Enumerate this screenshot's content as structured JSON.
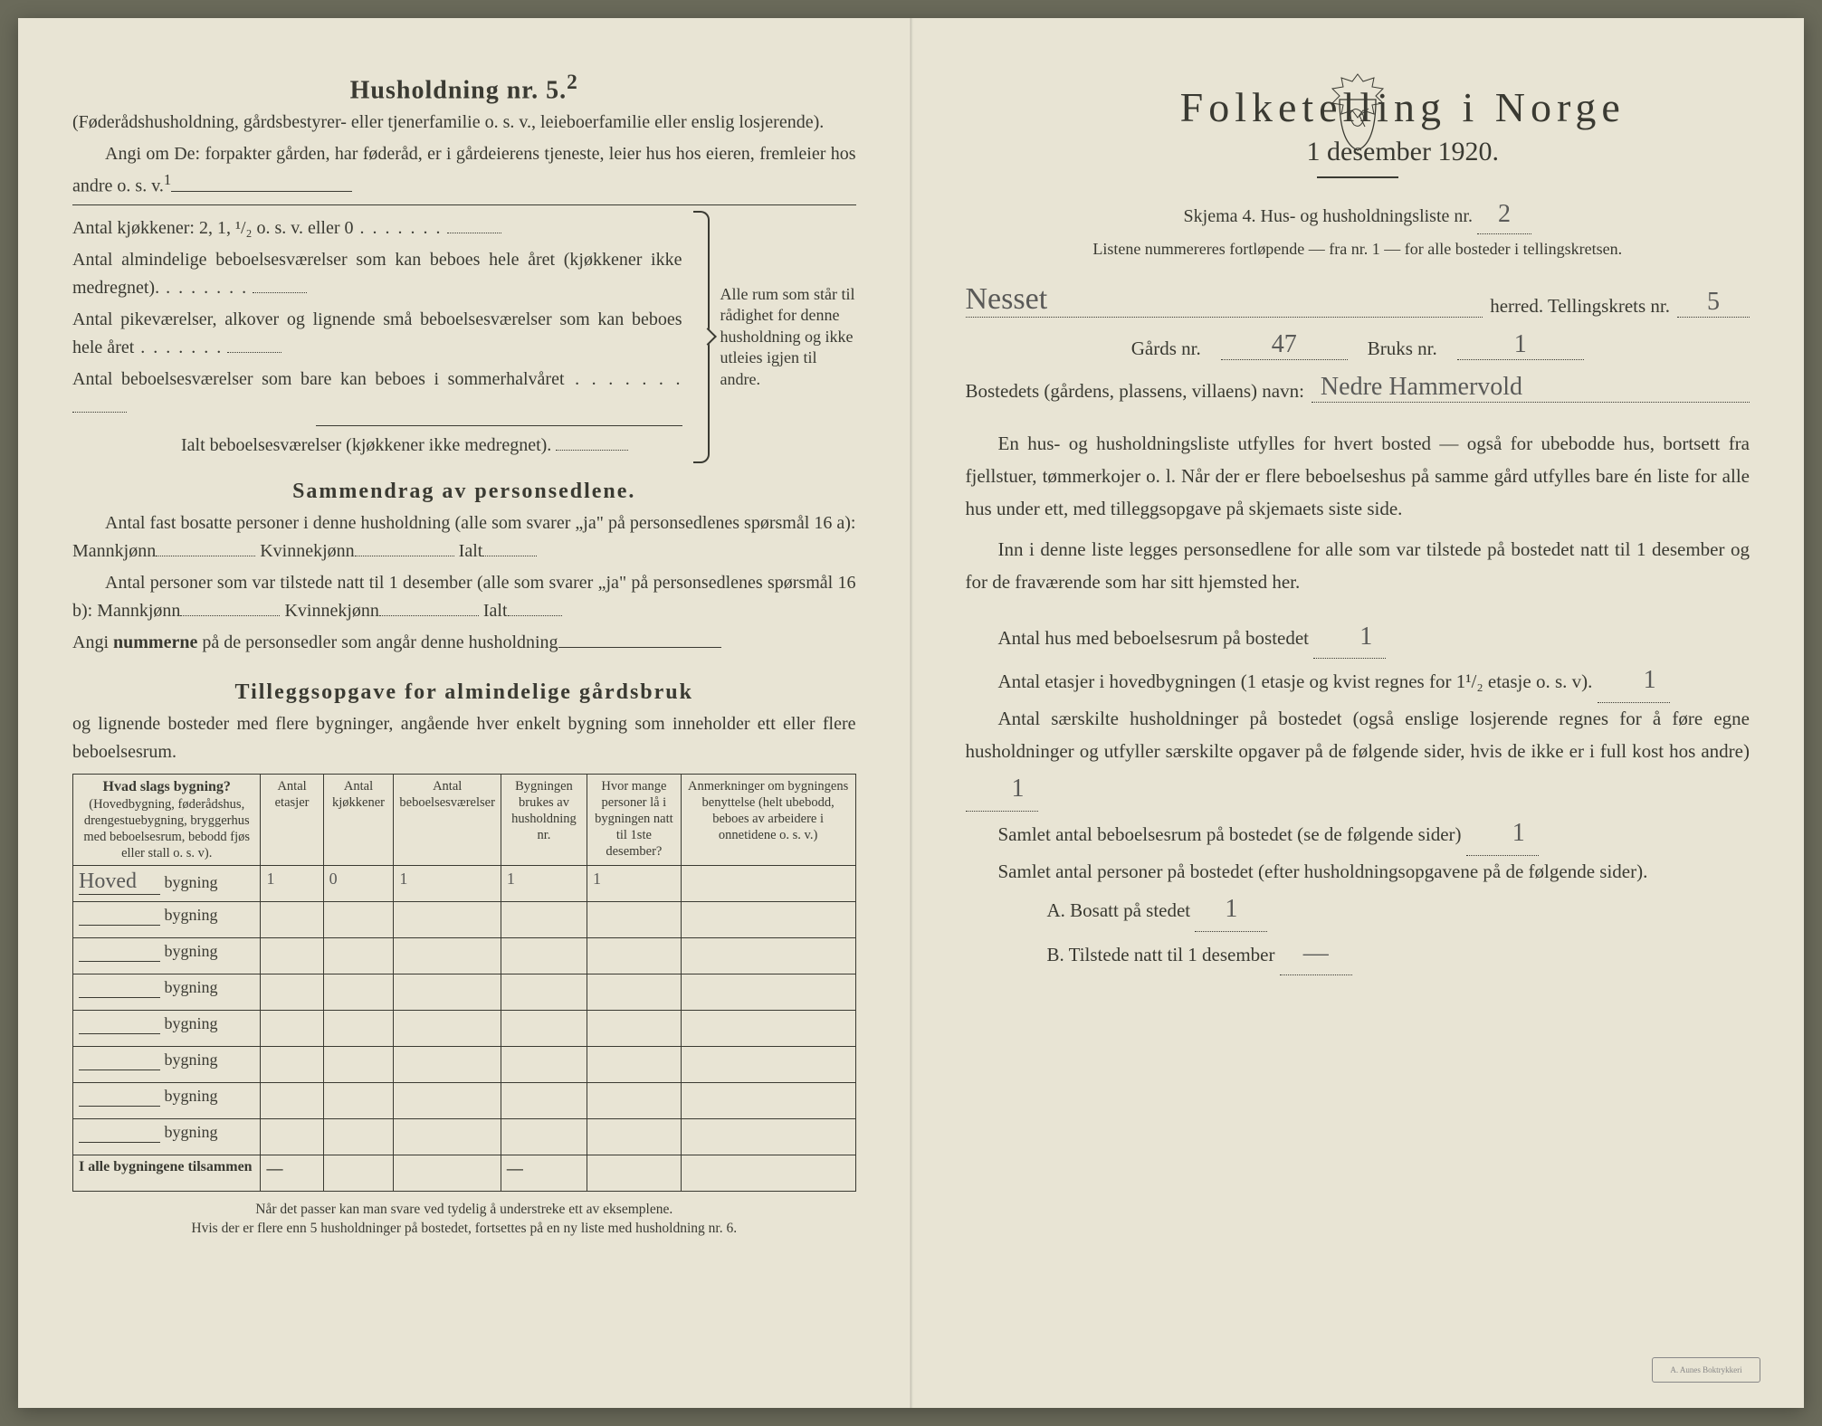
{
  "left": {
    "h5_title": "Husholdning nr. 5.",
    "h5_sup": "2",
    "h5_p1": "(Føderådshusholdning, gårdsbestyrer- eller tjenerfamilie o. s. v., leieboerfamilie eller enslig losjerende).",
    "h5_p2a": "Angi om De:  forpakter gården, har føderåd, er i gårdeierens tjeneste, leier hus hos eieren, fremleier hos andre o. s. v.",
    "h5_sup1": "1",
    "kjokken_line": "Antal kjøkkener: 2, 1, ¹/₂ o. s. v. eller 0",
    "rooms": [
      "Antal almindelige beboelsesværelser som kan beboes hele året (kjøkkener ikke medregnet).",
      "Antal pikeværelser, alkover og lignende små beboelsesværelser som kan beboes hele året",
      "Antal beboelsesværelser som bare kan beboes i sommerhalvåret"
    ],
    "rooms_total": "Ialt beboelsesværelser  (kjøkkener ikke medregnet).",
    "brace_text": "Alle rum som står til rådighet for denne husholdning og ikke utleies igjen til andre.",
    "sammen_title": "Sammendrag av personsedlene.",
    "sammen_p1": "Antal fast bosatte personer i denne husholdning (alle som svarer „ja\" på personsedlenes spørsmål 16 a): Mannkjønn",
    "kvinne": "Kvinnekjønn",
    "ialt": "Ialt",
    "sammen_p2": "Antal personer som var tilstede natt til 1 desember (alle som svarer „ja\" på personsedlenes spørsmål 16 b): Mannkjønn",
    "sammen_p3_a": "Angi ",
    "sammen_p3_b": "nummerne",
    "sammen_p3_c": " på de personsedler som angår denne husholdning",
    "tillegg_title": "Tilleggsopgave for almindelige gårdsbruk",
    "tillegg_sub": "og lignende bosteder med flere bygninger, angående hver enkelt bygning som inneholder ett eller flere beboelsesrum.",
    "thead": {
      "c1a": "Hvad slags bygning?",
      "c1b": "(Hovedbygning, føderådshus, drengestuebygning, bryggerhus med beboelsesrum, bebodd fjøs eller stall o. s. v).",
      "c2": "Antal etasjer",
      "c3": "Antal kjøkkener",
      "c4": "Antal beboelsesværelser",
      "c5": "Bygningen brukes av husholdning nr.",
      "c6": "Hvor mange personer lå i bygningen natt til 1ste desember?",
      "c7": "Anmerkninger om bygningens benyttelse (helt ubebodd, beboes av arbeidere i onnetidene o. s. v.)"
    },
    "bygning_word": "bygning",
    "row1_name": "Hoved",
    "row1": {
      "etasjer": "1",
      "kjokken": "0",
      "bebo": "1",
      "hush": "1",
      "pers": "1",
      "anm": ""
    },
    "rows_blank": 7,
    "total_label": "I alle bygningene tilsammen",
    "dash": "—",
    "foot1": "Når det passer kan man svare ved tydelig å understreke ett av eksemplene.",
    "foot2": "Hvis der er flere enn 5 husholdninger på bostedet, fortsettes på en ny liste med husholdning nr. 6."
  },
  "right": {
    "title": "Folketelling  i  Norge",
    "subtitle": "1 desember 1920.",
    "skjema_a": "Skjema 4.  Hus- og husholdningsliste nr.",
    "skjema_val": "2",
    "listene": "Listene nummereres fortløpende — fra nr. 1 — for alle bosteder i tellingskretsen.",
    "herred_val": "Nesset",
    "herred_lbl": "herred.   Tellingskrets nr.",
    "krets_val": "5",
    "gard_lbl": "Gårds nr.",
    "gard_val": "47",
    "bruks_lbl": "Bruks nr.",
    "bruks_val": "1",
    "bosted_lbl": "Bostedets (gårdens, plassens, villaens) navn:",
    "bosted_val": "Nedre Hammervold",
    "para1": "En hus- og husholdningsliste utfylles for hvert bosted — også for ubebodde hus, bortsett fra fjellstuer, tømmerkojer o. l.  Når der er flere beboelseshus på samme gård utfylles bare én liste for alle hus under ett, med tilleggsopgave på skjemaets siste side.",
    "para2": "Inn i denne liste legges personsedlene for alle som var tilstede på bostedet natt til 1 desember og for de fraværende som har sitt hjemsted her.",
    "q1_lbl": "Antal hus med beboelsesrum på bostedet",
    "q1_val": "1",
    "q2_lbl_a": "Antal etasjer i hovedbygningen (1 etasje og kvist regnes for 1¹/₂ etasje o. s. v).",
    "q2_val": "1",
    "q3_lbl": "Antal særskilte husholdninger på bostedet (også enslige losjerende regnes for å føre egne husholdninger og utfyller særskilte opgaver på de følgende sider, hvis de ikke er i full kost hos andre)",
    "q3_val": "1",
    "q4_lbl": "Samlet antal beboelsesrum på bostedet (se de følgende sider)",
    "q4_val": "1",
    "q5_lbl": "Samlet antal personer på bostedet (efter husholdningsopgavene på de følgende sider).",
    "qA_lbl": "A.  Bosatt på stedet",
    "qA_val": "1",
    "qB_lbl": "B.  Tilstede natt til 1 desember",
    "qB_val": "—",
    "stamp": "A. Aunes Boktrykkeri"
  }
}
